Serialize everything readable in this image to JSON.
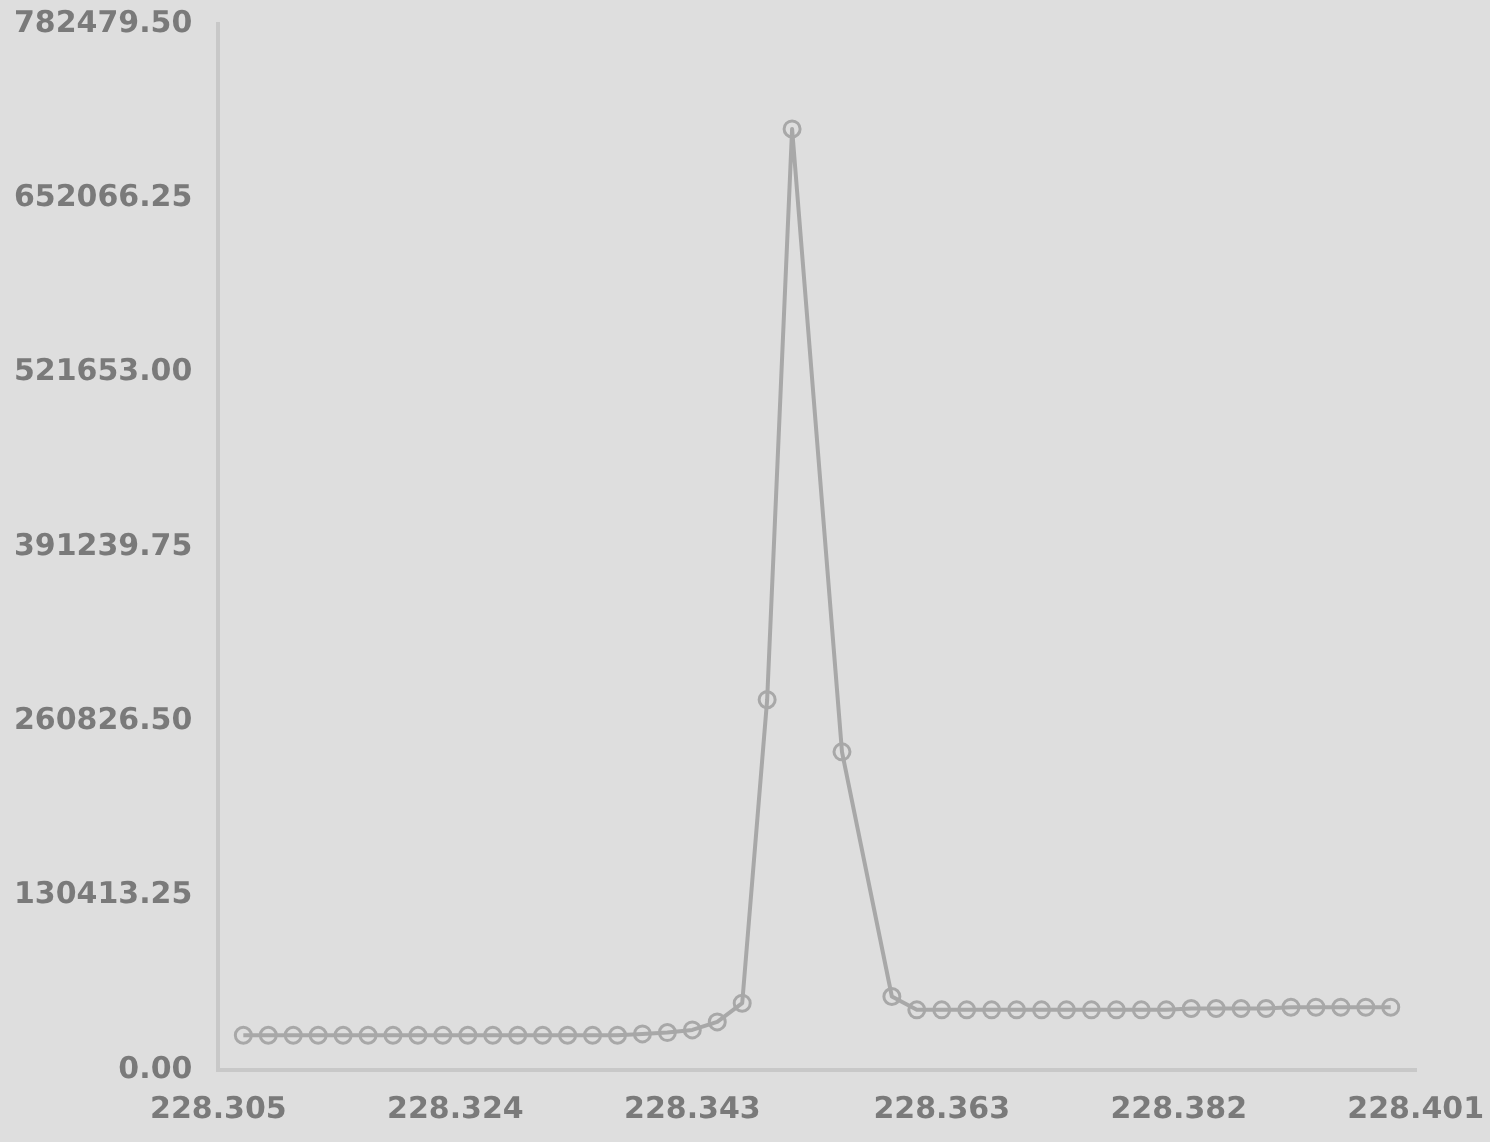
{
  "chart_data": {
    "type": "line",
    "marker": "circle",
    "grid": false,
    "legend": false,
    "x": [
      228.307,
      228.309,
      228.311,
      228.313,
      228.315,
      228.317,
      228.319,
      228.321,
      228.323,
      228.325,
      228.327,
      228.329,
      228.331,
      228.333,
      228.335,
      228.337,
      228.339,
      228.341,
      228.343,
      228.345,
      228.347,
      228.349,
      228.351,
      228.355,
      228.359,
      228.361,
      228.363,
      228.365,
      228.367,
      228.369,
      228.371,
      228.373,
      228.375,
      228.377,
      228.379,
      228.381,
      228.383,
      228.385,
      228.387,
      228.389,
      228.391,
      228.393,
      228.395,
      228.397,
      228.399
    ],
    "series": [
      {
        "color": "#a8a8a8",
        "values": [
          26000,
          26000,
          26000,
          26000,
          26000,
          26000,
          26000,
          26000,
          26000,
          26000,
          26000,
          26000,
          26000,
          26000,
          26000,
          26000,
          27000,
          28000,
          30000,
          36000,
          50000,
          277000,
          704000,
          238000,
          55000,
          45000,
          45000,
          45000,
          45000,
          45000,
          45000,
          45000,
          45000,
          45000,
          45000,
          45000,
          46000,
          46000,
          46000,
          46000,
          47000,
          47000,
          47000,
          47000,
          47000
        ]
      }
    ],
    "xlim": [
      228.305,
      228.401
    ],
    "xticks": [
      228.305,
      228.324,
      228.343,
      228.363,
      228.382,
      228.401
    ],
    "ylim": [
      0,
      782479.5
    ],
    "yticks": [
      {
        "value": 0,
        "label": "0.00"
      },
      {
        "value": 130413.25,
        "label": "130413.25"
      },
      {
        "value": 260826.5,
        "label": "260826.50"
      },
      {
        "value": 391239.75,
        "label": "391239.75"
      },
      {
        "value": 521653,
        "label": "521653.00"
      },
      {
        "value": 652066.25,
        "label": "652066.25"
      },
      {
        "value": 782479.5,
        "label": "782479.50"
      }
    ]
  }
}
